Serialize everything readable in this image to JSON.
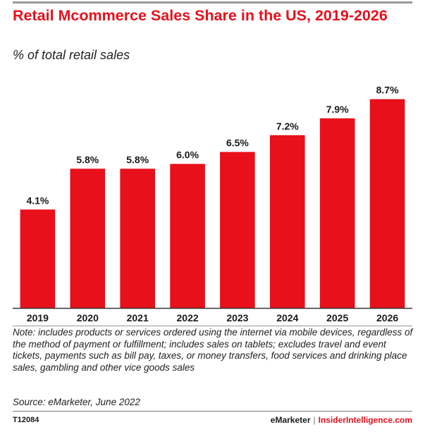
{
  "header": {
    "title": "Retail Mcommerce Sales Share in the US, 2019-2026",
    "subtitle": "% of total retail sales"
  },
  "chart_data": {
    "type": "bar",
    "categories": [
      "2019",
      "2020",
      "2021",
      "2022",
      "2023",
      "2024",
      "2025",
      "2026"
    ],
    "values": [
      4.1,
      5.8,
      5.8,
      6.0,
      6.5,
      7.2,
      7.9,
      8.7
    ],
    "data_labels": [
      "4.1%",
      "5.8%",
      "5.8%",
      "6.0%",
      "6.5%",
      "7.2%",
      "7.9%",
      "8.7%"
    ],
    "title": "Retail Mcommerce Sales Share in the US, 2019-2026",
    "subtitle": "% of total retail sales",
    "ylim": [
      0,
      9.6
    ],
    "grid": false,
    "bar_color": "#e8101b"
  },
  "footer": {
    "note": "Note: includes products or services ordered using the internet via mobile devices, regardless of the method of payment or fulfillment; includes sales on tablets; excludes travel and event tickets, payments such as bill pay, taxes, or money transfers, food services and drinking place sales, gambling and other vice goods sales",
    "source": "Source: eMarketer, June 2022",
    "chart_id": "T12084",
    "brand_a": "eMarketer",
    "separator": "|",
    "brand_b": "InsiderIntelligence.com"
  },
  "colors": {
    "accent": "#e8101b",
    "text": "#1a1a1a"
  }
}
